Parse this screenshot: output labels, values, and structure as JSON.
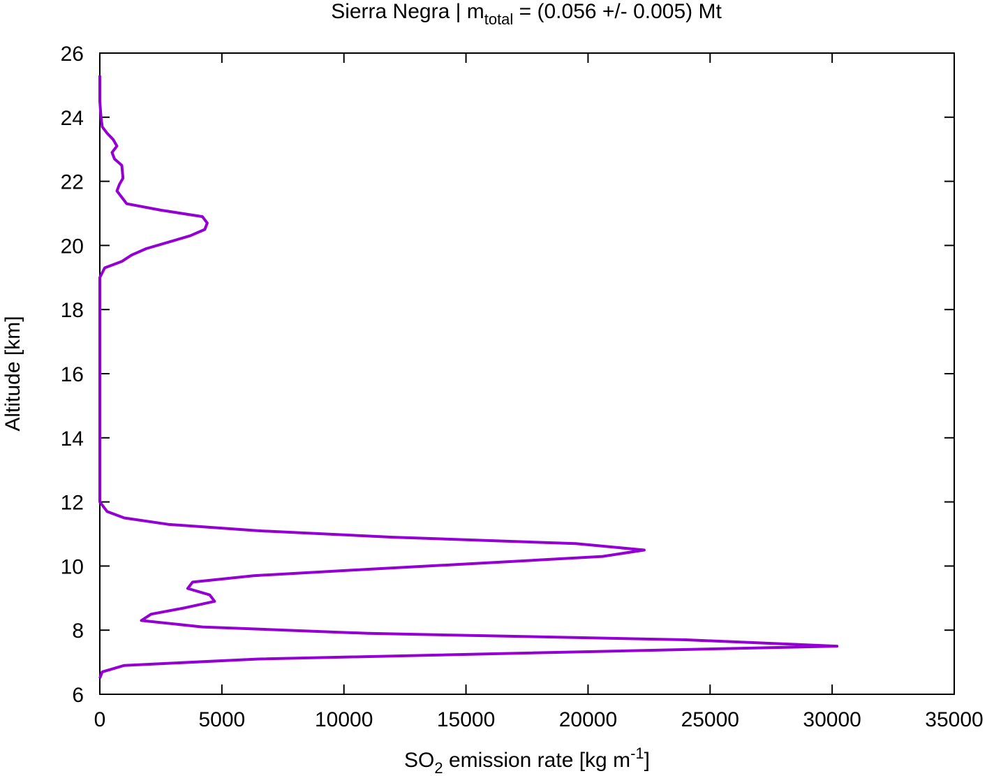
{
  "chart_data": {
    "type": "line",
    "title": {
      "text": "Sierra Negra | m",
      "sub": "total",
      "rest": " = (0.056 +/- 0.005) Mt"
    },
    "xlabel": {
      "text": "SO",
      "sub": "2",
      "rest": " emission rate [kg m",
      "sup": "-1",
      "end": "]"
    },
    "ylabel": "Altitude [km]",
    "xlim": [
      0,
      35000
    ],
    "xticks": [
      0,
      5000,
      10000,
      15000,
      20000,
      25000,
      30000,
      35000
    ],
    "ylim": [
      6,
      26
    ],
    "yticks": [
      6,
      8,
      10,
      12,
      14,
      16,
      18,
      20,
      22,
      24,
      26
    ],
    "color": "#9400d3",
    "altitude": [
      6.5,
      6.7,
      6.9,
      7.1,
      7.5,
      7.7,
      7.9,
      8.1,
      8.3,
      8.5,
      8.7,
      8.9,
      9.1,
      9.3,
      9.5,
      9.7,
      9.9,
      10.1,
      10.3,
      10.5,
      10.7,
      10.9,
      11.1,
      11.3,
      11.5,
      11.7,
      11.9,
      12.0,
      19.0,
      19.3,
      19.5,
      19.7,
      19.9,
      20.1,
      20.3,
      20.5,
      20.7,
      20.9,
      21.1,
      21.3,
      21.5,
      21.7,
      21.9,
      22.1,
      22.5,
      22.7,
      22.9,
      23.1,
      23.3,
      23.5,
      23.7,
      24.0,
      24.5,
      25.3
    ],
    "values": [
      0,
      100,
      1000,
      6500,
      30200,
      24000,
      11000,
      4200,
      1700,
      2100,
      3500,
      4700,
      4500,
      3600,
      3800,
      6300,
      11000,
      15900,
      20600,
      22300,
      19500,
      12000,
      6500,
      2800,
      1000,
      300,
      100,
      0,
      0,
      200,
      900,
      1300,
      1900,
      2800,
      3700,
      4300,
      4400,
      4200,
      2500,
      1100,
      900,
      700,
      800,
      950,
      900,
      600,
      500,
      700,
      550,
      300,
      100,
      50,
      0,
      0
    ]
  }
}
